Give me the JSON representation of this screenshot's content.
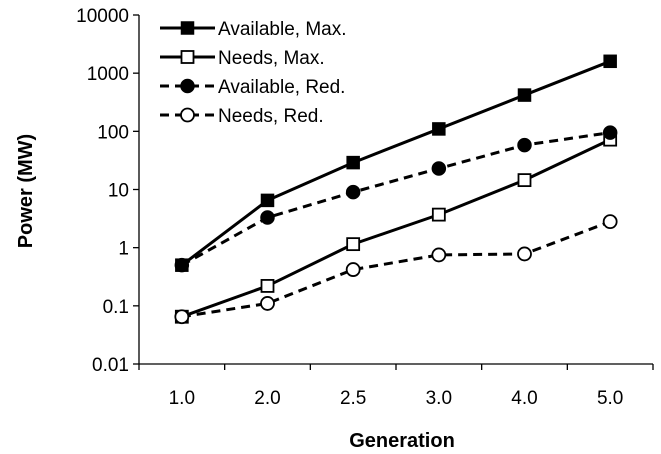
{
  "chart_data": {
    "type": "line",
    "title": "",
    "xlabel": "Generation",
    "ylabel": "Power (MW)",
    "yscale": "log",
    "ylim": [
      0.01,
      10000
    ],
    "yticks": [
      "0.01",
      "0.1",
      "1",
      "10",
      "100",
      "1000",
      "10000"
    ],
    "categories": [
      "1.0",
      "2.0",
      "2.5",
      "3.0",
      "4.0",
      "5.0"
    ],
    "grid": false,
    "legend_position": "top-left",
    "series": [
      {
        "name": "Available, Max.",
        "values": [
          0.5,
          6.5,
          29,
          110,
          420,
          1600
        ],
        "line": "solid",
        "marker": "filled-square",
        "color": "#000000"
      },
      {
        "name": "Needs, Max.",
        "values": [
          0.065,
          0.22,
          1.15,
          3.7,
          14.5,
          72
        ],
        "line": "solid",
        "marker": "open-square",
        "color": "#000000"
      },
      {
        "name": "Available, Red.",
        "values": [
          0.5,
          3.3,
          9,
          23,
          58,
          95
        ],
        "line": "dashed",
        "marker": "filled-circle",
        "color": "#000000"
      },
      {
        "name": "Needs, Red.",
        "values": [
          0.065,
          0.11,
          0.42,
          0.75,
          0.78,
          2.8
        ],
        "line": "dashed",
        "marker": "open-circle",
        "color": "#000000"
      }
    ]
  }
}
